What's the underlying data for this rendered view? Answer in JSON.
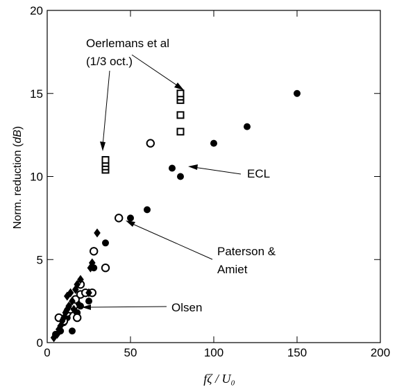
{
  "chart_data": {
    "type": "scatter",
    "xlabel": "fζ / U₀",
    "ylabel_main": "Norm. reduction (",
    "ylabel_unit": "dB",
    "ylabel_close": ")",
    "xlim": [
      0,
      200
    ],
    "ylim": [
      0,
      20
    ],
    "xticks": [
      "0",
      "50",
      "100",
      "150",
      "200"
    ],
    "yticks": [
      "0",
      "5",
      "10",
      "15",
      "20"
    ],
    "grid": false,
    "series": [
      {
        "name": "ECL",
        "marker": "filled-circle",
        "points": [
          [
            5,
            0.5
          ],
          [
            8,
            0.7
          ],
          [
            10,
            1.2
          ],
          [
            12,
            1.5
          ],
          [
            15,
            0.7
          ],
          [
            17,
            2.5
          ],
          [
            18,
            1.8
          ],
          [
            20,
            2.2
          ],
          [
            20,
            3.5
          ],
          [
            25,
            2.5
          ],
          [
            28,
            4.5
          ],
          [
            35,
            6.0
          ],
          [
            50,
            7.5
          ],
          [
            60,
            8.0
          ],
          [
            75,
            10.5
          ],
          [
            80,
            10.0
          ],
          [
            100,
            12.0
          ],
          [
            120,
            13.0
          ],
          [
            150,
            15.0
          ]
        ]
      },
      {
        "name": "Paterson & Amiet",
        "marker": "open-circle",
        "points": [
          [
            7,
            1.5
          ],
          [
            10,
            1.3
          ],
          [
            12,
            1.8
          ],
          [
            14,
            2.0
          ],
          [
            16,
            2.2
          ],
          [
            17,
            2.6
          ],
          [
            18,
            1.5
          ],
          [
            20,
            2.9
          ],
          [
            20,
            3.5
          ],
          [
            23,
            3.0
          ],
          [
            27,
            3.0
          ],
          [
            28,
            5.5
          ],
          [
            35,
            4.5
          ],
          [
            43,
            7.5
          ],
          [
            62,
            12.0
          ]
        ]
      },
      {
        "name": "Olsen",
        "marker": "filled-diamond",
        "points": [
          [
            4,
            0.3
          ],
          [
            6,
            0.5
          ],
          [
            7,
            0.8
          ],
          [
            8,
            1.0
          ],
          [
            9,
            1.3
          ],
          [
            10,
            1.5
          ],
          [
            11,
            1.8
          ],
          [
            12,
            2.0
          ],
          [
            12,
            2.8
          ],
          [
            13,
            2.2
          ],
          [
            14,
            3.0
          ],
          [
            15,
            2.5
          ],
          [
            16,
            2.0
          ],
          [
            17,
            3.2
          ],
          [
            18,
            3.5
          ],
          [
            19,
            2.3
          ],
          [
            20,
            3.8
          ],
          [
            25,
            3.0
          ],
          [
            26,
            4.5
          ],
          [
            27,
            4.8
          ],
          [
            30,
            6.6
          ]
        ]
      },
      {
        "name": "Oerlemans et al (1/3 oct.)",
        "marker": "open-square",
        "points": [
          [
            35,
            10.4
          ],
          [
            35,
            10.6
          ],
          [
            35,
            10.8
          ],
          [
            35,
            11.0
          ],
          [
            80,
            12.7
          ],
          [
            80,
            13.7
          ],
          [
            80,
            14.6
          ],
          [
            80,
            14.8
          ],
          [
            80,
            15.0
          ]
        ]
      }
    ],
    "annotations": [
      {
        "label": "Oerlemans et al",
        "label2": "(1/3 oct.)"
      },
      {
        "label": "ECL"
      },
      {
        "label": "Paterson &",
        "label2": "Amiet"
      },
      {
        "label": "Olsen"
      }
    ]
  }
}
